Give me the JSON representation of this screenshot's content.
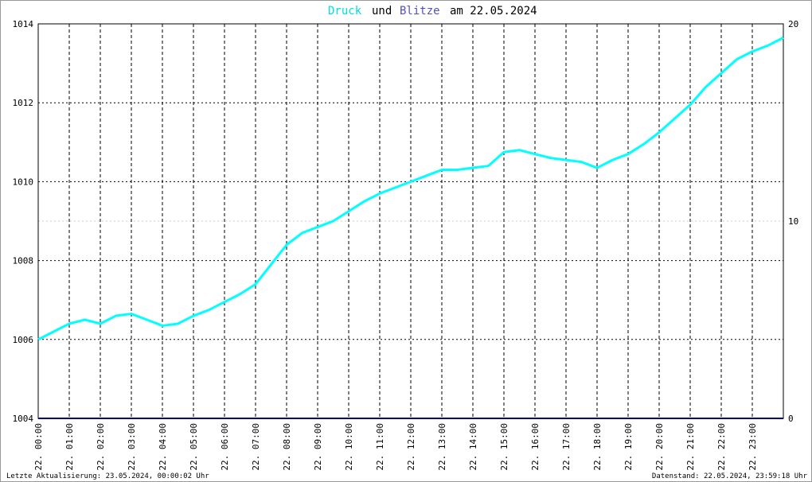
{
  "chart_data": {
    "type": "line",
    "title_texts": [
      "und",
      "am 22.05.2024"
    ],
    "x": [
      0,
      0.5,
      1,
      1.5,
      2,
      2.5,
      3,
      3.5,
      4,
      4.5,
      5,
      5.5,
      6,
      6.5,
      7,
      7.5,
      8,
      8.5,
      9,
      9.5,
      10,
      10.5,
      11,
      11.5,
      12,
      12.5,
      13,
      13.5,
      14,
      14.5,
      15,
      15.5,
      16,
      16.5,
      17,
      17.5,
      18,
      18.5,
      19,
      19.5,
      20,
      20.5,
      21,
      21.5,
      22,
      22.5,
      23,
      23.5,
      24
    ],
    "series": [
      {
        "name": "Druck",
        "color": "#00ffff",
        "values": [
          1006.0,
          1006.2,
          1006.4,
          1006.5,
          1006.4,
          1006.6,
          1006.65,
          1006.5,
          1006.35,
          1006.4,
          1006.6,
          1006.75,
          1006.95,
          1007.15,
          1007.4,
          1007.9,
          1008.4,
          1008.7,
          1008.85,
          1009.0,
          1009.25,
          1009.5,
          1009.7,
          1009.85,
          1010.0,
          1010.15,
          1010.3,
          1010.3,
          1010.35,
          1010.4,
          1010.75,
          1010.8,
          1010.7,
          1010.6,
          1010.55,
          1010.5,
          1010.35,
          1010.55,
          1010.7,
          1010.95,
          1011.25,
          1011.6,
          1011.95,
          1012.4,
          1012.75,
          1013.1,
          1013.3,
          1013.45,
          1013.65
        ]
      },
      {
        "name": "Blitze",
        "color": "#000080",
        "axis": "y2",
        "values": [
          0,
          0,
          0,
          0,
          0,
          0,
          0,
          0,
          0,
          0,
          0,
          0,
          0,
          0,
          0,
          0,
          0,
          0,
          0,
          0,
          0,
          0,
          0,
          0,
          0,
          0,
          0,
          0,
          0,
          0,
          0,
          0,
          0,
          0,
          0,
          0,
          0,
          0,
          0,
          0,
          0,
          0,
          0,
          0,
          0,
          0,
          0,
          0,
          0
        ]
      }
    ],
    "xlim": [
      0,
      24
    ],
    "xticks": [
      {
        "value": 0,
        "label": "22. 00:00"
      },
      {
        "value": 1,
        "label": "22. 01:00"
      },
      {
        "value": 2,
        "label": "22. 02:00"
      },
      {
        "value": 3,
        "label": "22. 03:00"
      },
      {
        "value": 4,
        "label": "22. 04:00"
      },
      {
        "value": 5,
        "label": "22. 05:00"
      },
      {
        "value": 6,
        "label": "22. 06:00"
      },
      {
        "value": 7,
        "label": "22. 07:00"
      },
      {
        "value": 8,
        "label": "22. 08:00"
      },
      {
        "value": 9,
        "label": "22. 09:00"
      },
      {
        "value": 10,
        "label": "22. 10:00"
      },
      {
        "value": 11,
        "label": "22. 11:00"
      },
      {
        "value": 12,
        "label": "22. 12:00"
      },
      {
        "value": 13,
        "label": "22. 13:00"
      },
      {
        "value": 14,
        "label": "22. 14:00"
      },
      {
        "value": 15,
        "label": "22. 15:00"
      },
      {
        "value": 16,
        "label": "22. 16:00"
      },
      {
        "value": 17,
        "label": "22. 17:00"
      },
      {
        "value": 18,
        "label": "22. 18:00"
      },
      {
        "value": 19,
        "label": "22. 19:00"
      },
      {
        "value": 20,
        "label": "22. 20:00"
      },
      {
        "value": 21,
        "label": "22. 21:00"
      },
      {
        "value": 22,
        "label": "22. 22:00"
      },
      {
        "value": 23,
        "label": "22. 23:00"
      }
    ],
    "ylim": [
      1004,
      1014
    ],
    "yticks": [
      1004,
      1006,
      1008,
      1010,
      1012,
      1014
    ],
    "y2lim": [
      0,
      20
    ],
    "y2ticks": [
      0,
      10,
      20
    ],
    "grid": true,
    "footer_left": "Letzte Aktualisierung: 23.05.2024, 00:00:02 Uhr",
    "footer_right": "Datenstand: 22.05.2024, 23:59:18 Uhr"
  }
}
